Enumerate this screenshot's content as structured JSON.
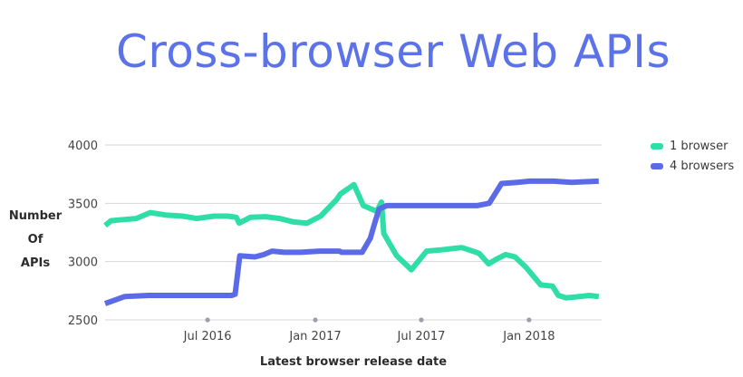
{
  "chart_data": {
    "type": "line",
    "title": "Cross-browser Web APIs",
    "xlabel": "Latest browser release date",
    "ylabel": [
      "Number",
      "Of",
      "APIs"
    ],
    "ylim": [
      2500,
      4000
    ],
    "yticks": [
      2500,
      3000,
      3500,
      4000
    ],
    "xlim": [
      "2016-01-08",
      "2018-05-05"
    ],
    "xticks": [
      {
        "label": "Jul 2016",
        "date": "2016-07-01"
      },
      {
        "label": "Jan 2017",
        "date": "2017-01-01"
      },
      {
        "label": "Jul 2017",
        "date": "2017-07-01"
      },
      {
        "label": "Jan 2018",
        "date": "2018-01-01"
      }
    ],
    "grid": true,
    "legend_position": "top-right",
    "colors": {
      "title": "#5b72e8",
      "grid": "#d7d7d7",
      "tick_dot": "#9aa0a6"
    },
    "series": [
      {
        "name": "1 browser",
        "color": "#2fdea6",
        "x": [
          "2016-01-08",
          "2016-01-18",
          "2016-02-08",
          "2016-03-01",
          "2016-03-25",
          "2016-04-20",
          "2016-05-20",
          "2016-06-12",
          "2016-07-12",
          "2016-08-05",
          "2016-08-19",
          "2016-08-24",
          "2016-09-12",
          "2016-10-08",
          "2016-11-01",
          "2016-11-25",
          "2016-12-18",
          "2017-01-10",
          "2017-02-06",
          "2017-02-13",
          "2017-03-08",
          "2017-03-24",
          "2017-03-29",
          "2017-04-07",
          "2017-04-16",
          "2017-04-24",
          "2017-04-28",
          "2017-05-20",
          "2017-06-14",
          "2017-07-10",
          "2017-08-03",
          "2017-08-20",
          "2017-09-08",
          "2017-09-27",
          "2017-10-08",
          "2017-10-24",
          "2017-11-06",
          "2017-11-22",
          "2017-12-08",
          "2017-12-27",
          "2018-01-21",
          "2018-02-10",
          "2018-02-20",
          "2018-03-05",
          "2018-03-28",
          "2018-04-14",
          "2018-04-30"
        ],
        "values": [
          3310,
          3350,
          3360,
          3370,
          3420,
          3400,
          3390,
          3370,
          3390,
          3390,
          3380,
          3330,
          3380,
          3385,
          3370,
          3340,
          3330,
          3390,
          3530,
          3580,
          3660,
          3480,
          3470,
          3450,
          3430,
          3510,
          3240,
          3050,
          2930,
          3090,
          3100,
          3110,
          3120,
          3090,
          3070,
          2980,
          3020,
          3060,
          3040,
          2950,
          2800,
          2790,
          2710,
          2690,
          2700,
          2710,
          2700
        ]
      },
      {
        "name": "4 browsers",
        "color": "#5b6be8",
        "x": [
          "2016-01-08",
          "2016-02-10",
          "2016-03-22",
          "2016-05-24",
          "2016-07-29",
          "2016-08-11",
          "2016-08-17",
          "2016-08-25",
          "2016-09-20",
          "2016-10-05",
          "2016-10-19",
          "2016-11-09",
          "2016-12-07",
          "2017-01-08",
          "2017-02-11",
          "2017-02-15",
          "2017-03-22",
          "2017-04-05",
          "2017-04-13",
          "2017-04-20",
          "2017-05-03",
          "2017-05-15",
          "2017-06-19",
          "2017-07-24",
          "2017-08-31",
          "2017-10-04",
          "2017-10-25",
          "2017-11-15",
          "2017-12-12",
          "2018-01-02",
          "2018-02-12",
          "2018-03-15",
          "2018-04-30"
        ],
        "values": [
          2640,
          2700,
          2710,
          2710,
          2710,
          2710,
          2720,
          3050,
          3040,
          3060,
          3090,
          3080,
          3080,
          3090,
          3090,
          3080,
          3080,
          3200,
          3340,
          3450,
          3480,
          3480,
          3480,
          3480,
          3480,
          3480,
          3500,
          3670,
          3680,
          3690,
          3690,
          3680,
          3690
        ]
      }
    ]
  }
}
